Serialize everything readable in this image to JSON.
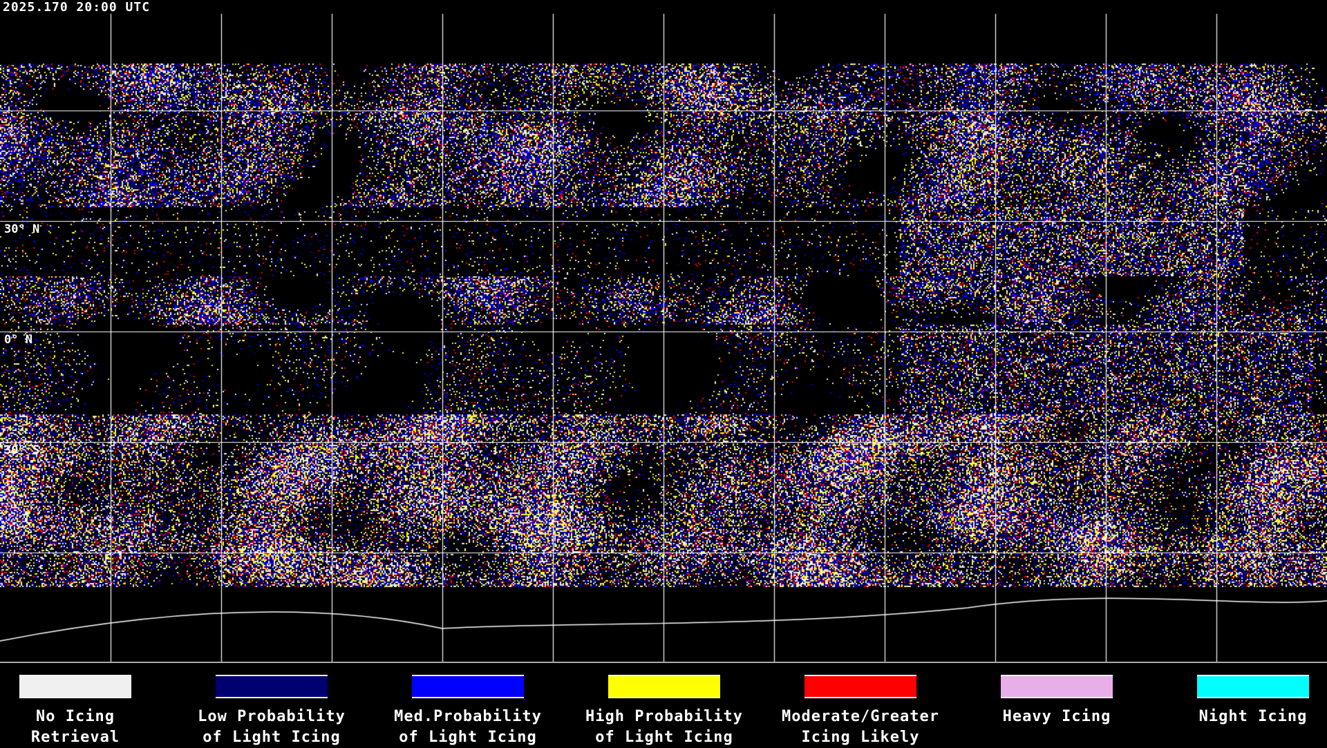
{
  "header": {
    "timestamp": "2025.170 20:00 UTC"
  },
  "map": {
    "latitude_labels": [
      "30° N",
      "0° N",
      "30° S"
    ],
    "background": "#000000",
    "gridline_color": "#ffffff",
    "coastline_color": "#ffffff"
  },
  "legend": [
    {
      "line1": "No Icing",
      "line2": "Retrieval",
      "color": "#f0f0f0"
    },
    {
      "line1": "Low Probability",
      "line2": "of Light Icing",
      "color": "#000070"
    },
    {
      "line1": "Med.Probability",
      "line2": "of Light Icing",
      "color": "#0000ff"
    },
    {
      "line1": "High Probability",
      "line2": "of Light Icing",
      "color": "#ffff00"
    },
    {
      "line1": "Moderate/Greater",
      "line2": "Icing Likely",
      "color": "#ff0000"
    },
    {
      "line1": "Heavy Icing",
      "line2": "",
      "color": "#e8aee8"
    },
    {
      "line1": "Night Icing",
      "line2": "",
      "color": "#00ffff"
    }
  ]
}
